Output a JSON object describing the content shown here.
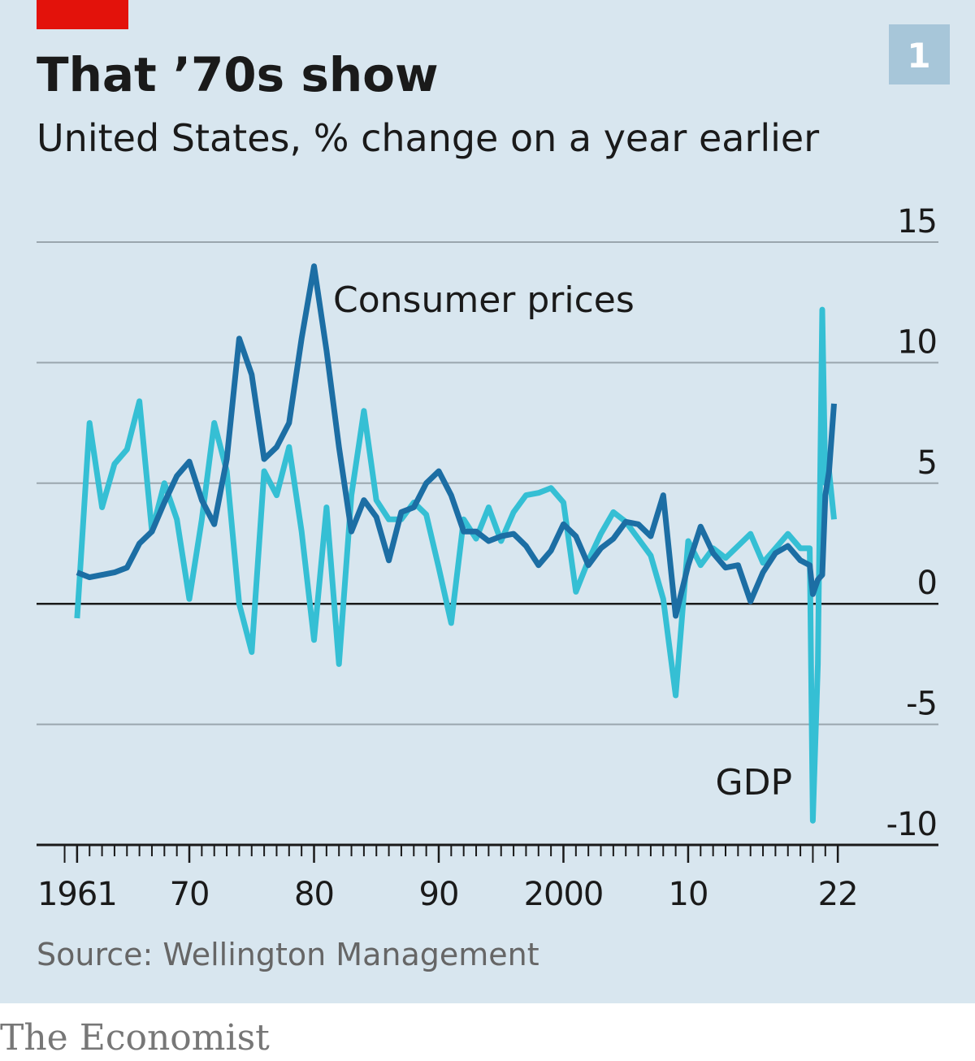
{
  "chart_data": {
    "type": "line",
    "title": "That ’70s show",
    "subtitle": "United States, % change on a year earlier",
    "chart_number": "1",
    "source": "Source: Wellington Management",
    "publisher": "The Economist",
    "x": [
      1961,
      1962,
      1963,
      1964,
      1965,
      1966,
      1967,
      1968,
      1969,
      1970,
      1971,
      1972,
      1973,
      1974,
      1975,
      1976,
      1977,
      1978,
      1979,
      1980,
      1981,
      1982,
      1983,
      1984,
      1985,
      1986,
      1987,
      1988,
      1989,
      1990,
      1991,
      1992,
      1993,
      1994,
      1995,
      1996,
      1997,
      1998,
      1999,
      2000,
      2001,
      2002,
      2003,
      2004,
      2005,
      2006,
      2007,
      2008,
      2009,
      2010,
      2011,
      2012,
      2013,
      2014,
      2015,
      2016,
      2017,
      2018,
      2019,
      2019.75,
      2020,
      2020.4,
      2020.75,
      2021,
      2021.3,
      2021.7
    ],
    "series": [
      {
        "name": "GDP",
        "color": "#35bfd4",
        "values": [
          -0.6,
          7.5,
          4.0,
          5.8,
          6.4,
          8.4,
          3.0,
          5.0,
          3.5,
          0.2,
          3.5,
          7.5,
          5.5,
          0.0,
          -2.0,
          5.5,
          4.5,
          6.5,
          3.0,
          -1.5,
          4.0,
          -2.5,
          4.5,
          8.0,
          4.3,
          3.5,
          3.5,
          4.2,
          3.7,
          1.5,
          -0.8,
          3.5,
          2.7,
          4.0,
          2.6,
          3.8,
          4.5,
          4.6,
          4.8,
          4.2,
          0.5,
          1.8,
          2.9,
          3.8,
          3.4,
          2.7,
          2.0,
          0.2,
          -3.8,
          2.6,
          1.6,
          2.3,
          1.9,
          2.4,
          2.9,
          1.7,
          2.3,
          2.9,
          2.3,
          2.3,
          -9.0,
          -2.5,
          12.2,
          5.0,
          5.5,
          3.5
        ]
      },
      {
        "name": "Consumer prices",
        "color": "#1c6ea4",
        "values": [
          1.3,
          1.1,
          1.2,
          1.3,
          1.5,
          2.5,
          3.0,
          4.2,
          5.3,
          5.9,
          4.3,
          3.3,
          6.0,
          11.0,
          9.5,
          6.0,
          6.5,
          7.5,
          11.0,
          14.0,
          10.5,
          6.5,
          3.0,
          4.3,
          3.6,
          1.8,
          3.8,
          4.0,
          5.0,
          5.5,
          4.5,
          3.0,
          3.0,
          2.6,
          2.8,
          2.9,
          2.4,
          1.6,
          2.2,
          3.3,
          2.8,
          1.6,
          2.3,
          2.7,
          3.4,
          3.3,
          2.8,
          4.5,
          -0.5,
          1.6,
          3.2,
          2.1,
          1.5,
          1.6,
          0.1,
          1.3,
          2.1,
          2.4,
          1.8,
          1.6,
          0.4,
          1.0,
          1.2,
          4.5,
          5.5,
          8.3
        ]
      }
    ],
    "xlim": [
      1957.75,
      2030.07
    ],
    "xticks": [
      1961,
      {
        "value": 1970,
        "label": "70"
      },
      {
        "value": 1980,
        "label": "80"
      },
      {
        "value": 1990,
        "label": "90"
      },
      2000,
      {
        "value": 2010,
        "label": "10"
      },
      {
        "value": 2022,
        "label": "22"
      }
    ],
    "ylim": [
      -10,
      15
    ],
    "yticks": [
      -10,
      -5,
      0,
      5,
      10,
      15
    ],
    "grid": true
  }
}
